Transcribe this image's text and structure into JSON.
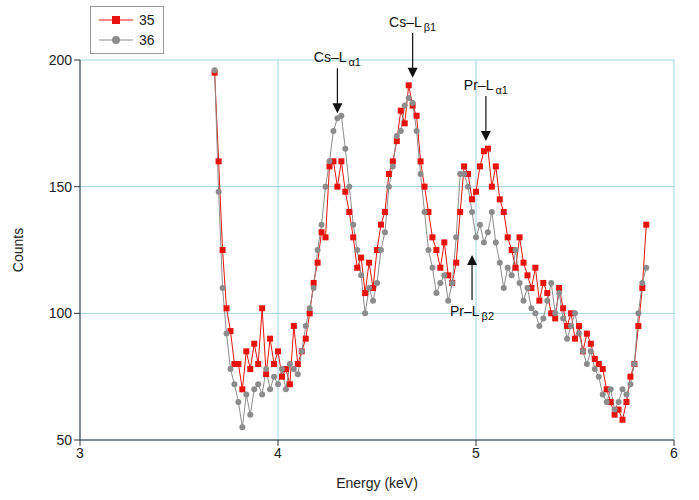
{
  "chart_data": {
    "type": "line",
    "x_label": "Energy (keV)",
    "y_label": "Counts",
    "xlim": [
      3,
      6
    ],
    "xticks": [
      3,
      4,
      5,
      6
    ],
    "ylim": [
      50,
      200
    ],
    "yticks": [
      50,
      100,
      150,
      200
    ],
    "grid": true,
    "legend": "upper left",
    "x": [
      3.68,
      3.7,
      3.72,
      3.74,
      3.76,
      3.78,
      3.8,
      3.82,
      3.84,
      3.86,
      3.88,
      3.9,
      3.92,
      3.94,
      3.96,
      3.98,
      4.0,
      4.02,
      4.04,
      4.06,
      4.08,
      4.1,
      4.12,
      4.14,
      4.16,
      4.18,
      4.2,
      4.22,
      4.24,
      4.26,
      4.28,
      4.3,
      4.32,
      4.34,
      4.36,
      4.38,
      4.4,
      4.42,
      4.44,
      4.46,
      4.48,
      4.5,
      4.52,
      4.54,
      4.56,
      4.58,
      4.6,
      4.62,
      4.64,
      4.66,
      4.68,
      4.7,
      4.72,
      4.74,
      4.76,
      4.78,
      4.8,
      4.82,
      4.84,
      4.86,
      4.88,
      4.9,
      4.92,
      4.94,
      4.96,
      4.98,
      5.0,
      5.02,
      5.04,
      5.06,
      5.08,
      5.1,
      5.12,
      5.14,
      5.16,
      5.18,
      5.2,
      5.22,
      5.24,
      5.26,
      5.28,
      5.3,
      5.32,
      5.34,
      5.36,
      5.38,
      5.4,
      5.42,
      5.44,
      5.46,
      5.48,
      5.5,
      5.52,
      5.54,
      5.56,
      5.58,
      5.6,
      5.62,
      5.64,
      5.66,
      5.68,
      5.7,
      5.72,
      5.74,
      5.76,
      5.78,
      5.8,
      5.82,
      5.84,
      5.86
    ],
    "series": [
      {
        "name": "35",
        "color": "#e8120c",
        "marker": "square",
        "values": [
          195,
          160,
          125,
          102,
          93,
          80,
          80,
          70,
          85,
          78,
          88,
          80,
          102,
          76,
          90,
          80,
          85,
          75,
          78,
          72,
          95,
          80,
          85,
          90,
          100,
          112,
          120,
          132,
          130,
          158,
          160,
          150,
          160,
          148,
          140,
          130,
          118,
          122,
          108,
          120,
          110,
          125,
          135,
          140,
          155,
          160,
          168,
          180,
          175,
          190,
          182,
          178,
          160,
          150,
          140,
          130,
          125,
          118,
          128,
          115,
          112,
          120,
          140,
          158,
          155,
          145,
          148,
          158,
          164,
          165,
          150,
          158,
          145,
          140,
          130,
          125,
          118,
          130,
          120,
          115,
          110,
          118,
          105,
          112,
          108,
          100,
          98,
          110,
          102,
          95,
          100,
          90,
          95,
          85,
          92,
          88,
          82,
          80,
          78,
          70,
          65,
          60,
          62,
          58,
          65,
          75,
          80,
          95,
          110,
          135
        ]
      },
      {
        "name": "36",
        "color": "#8c8c8c",
        "marker": "circle",
        "values": [
          196,
          148,
          110,
          92,
          78,
          72,
          65,
          55,
          68,
          60,
          70,
          72,
          68,
          78,
          70,
          75,
          72,
          78,
          70,
          80,
          78,
          76,
          85,
          95,
          102,
          110,
          125,
          135,
          150,
          160,
          172,
          177,
          178,
          165,
          150,
          135,
          125,
          115,
          100,
          110,
          105,
          112,
          125,
          132,
          150,
          158,
          170,
          172,
          182,
          185,
          183,
          172,
          155,
          140,
          125,
          118,
          108,
          112,
          115,
          105,
          112,
          130,
          155,
          155,
          150,
          140,
          130,
          135,
          128,
          132,
          140,
          128,
          120,
          110,
          118,
          115,
          125,
          112,
          105,
          110,
          102,
          100,
          95,
          98,
          105,
          112,
          100,
          108,
          98,
          90,
          95,
          100,
          92,
          85,
          80,
          85,
          78,
          75,
          68,
          65,
          70,
          62,
          65,
          70,
          68,
          72,
          80,
          100,
          112,
          118
        ]
      }
    ],
    "annotations": [
      {
        "text": "Cs–L",
        "subscript": "α1",
        "x": 4.3,
        "y": 179,
        "label_position": "above"
      },
      {
        "text": "Cs–L",
        "subscript": "β1",
        "x": 4.68,
        "y": 193,
        "label_position": "above"
      },
      {
        "text": "Pr–L",
        "subscript": "α1",
        "x": 5.05,
        "y": 168,
        "label_position": "above"
      },
      {
        "text": "Pr–L",
        "subscript": "β2",
        "x": 4.98,
        "y": 123,
        "label_position": "below"
      }
    ]
  }
}
